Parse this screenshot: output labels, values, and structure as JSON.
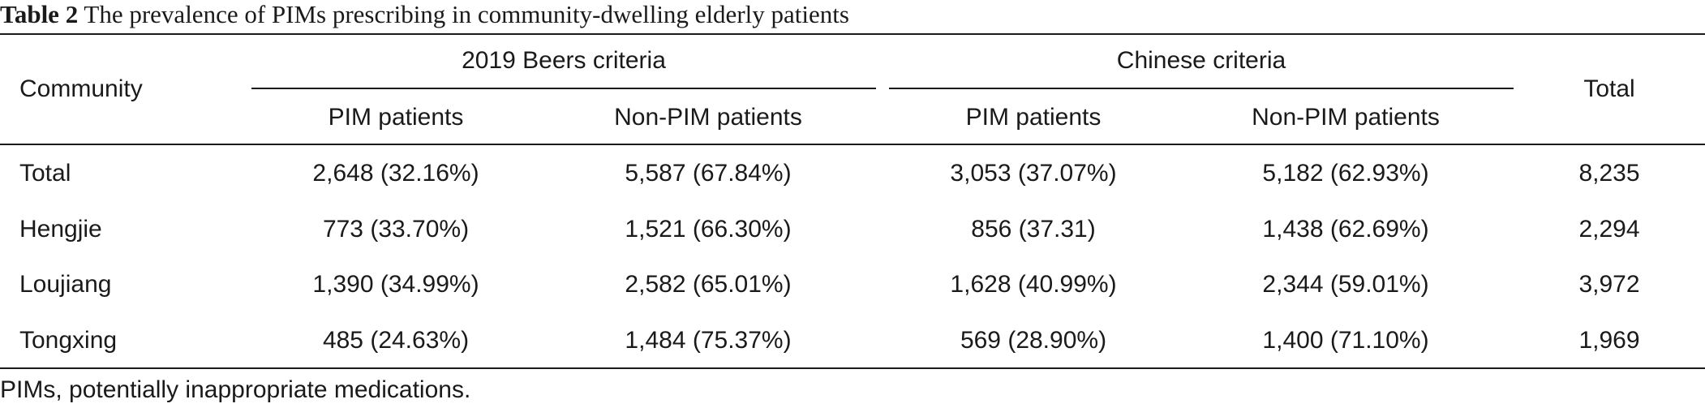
{
  "caption": {
    "label": "Table 2",
    "title": "The prevalence of PIMs prescribing in community-dwelling elderly patients"
  },
  "header": {
    "community": "Community",
    "groups": [
      "2019 Beers criteria",
      "Chinese criteria"
    ],
    "subcolumns": [
      "PIM patients",
      "Non-PIM patients",
      "PIM patients",
      "Non-PIM patients"
    ],
    "total": "Total"
  },
  "rows": [
    {
      "community": "Total",
      "beers_pim": "2,648 (32.16%)",
      "beers_non": "5,587 (67.84%)",
      "chinese_pim": "3,053 (37.07%)",
      "chinese_non": "5,182 (62.93%)",
      "total": "8,235"
    },
    {
      "community": "Hengjie",
      "beers_pim": "773 (33.70%)",
      "beers_non": "1,521 (66.30%)",
      "chinese_pim": "856 (37.31)",
      "chinese_non": "1,438 (62.69%)",
      "total": "2,294"
    },
    {
      "community": "Loujiang",
      "beers_pim": "1,390 (34.99%)",
      "beers_non": "2,582 (65.01%)",
      "chinese_pim": "1,628 (40.99%)",
      "chinese_non": "2,344 (59.01%)",
      "total": "3,972"
    },
    {
      "community": "Tongxing",
      "beers_pim": "485 (24.63%)",
      "beers_non": "1,484 (75.37%)",
      "chinese_pim": "569 (28.90%)",
      "chinese_non": "1,400 (71.10%)",
      "total": "1,969"
    }
  ],
  "footnote": "PIMs, potentially inappropriate medications."
}
